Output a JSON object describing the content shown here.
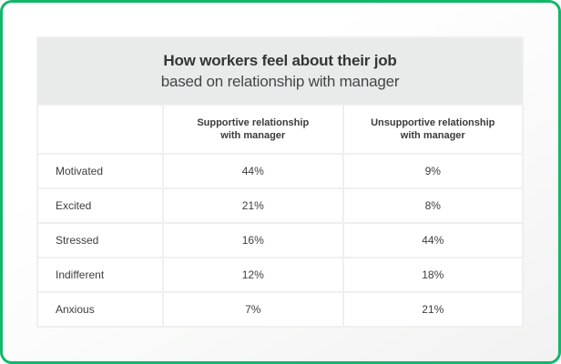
{
  "accent_color": "#12b76a",
  "table": {
    "title": "How workers feel about their job",
    "subtitle": "based on relationship with manager",
    "columns": [
      "Supportive relationship\nwith manager",
      "Unsupportive relationship\nwith manager"
    ],
    "rows": [
      {
        "label": "Motivated",
        "supportive": "44%",
        "unsupportive": "9%"
      },
      {
        "label": "Excited",
        "supportive": "21%",
        "unsupportive": "8%"
      },
      {
        "label": "Stressed",
        "supportive": "16%",
        "unsupportive": "44%"
      },
      {
        "label": "Indifferent",
        "supportive": "12%",
        "unsupportive": "18%"
      },
      {
        "label": "Anxious",
        "supportive": "7%",
        "unsupportive": "21%"
      }
    ]
  },
  "chart_data": {
    "type": "table",
    "title": "How workers feel about their job",
    "subtitle": "based on relationship with manager",
    "categories": [
      "Motivated",
      "Excited",
      "Stressed",
      "Indifferent",
      "Anxious"
    ],
    "series": [
      {
        "name": "Supportive relationship with manager",
        "values": [
          44,
          21,
          16,
          12,
          7
        ]
      },
      {
        "name": "Unsupportive relationship with manager",
        "values": [
          9,
          8,
          44,
          18,
          21
        ]
      }
    ],
    "unit": "%"
  }
}
